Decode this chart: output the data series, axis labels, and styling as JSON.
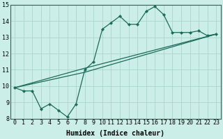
{
  "xlabel": "Humidex (Indice chaleur)",
  "background_color": "#cceee8",
  "grid_color": "#aad4cc",
  "line_color": "#1a6b5a",
  "xlim": [
    -0.5,
    23.5
  ],
  "ylim": [
    8,
    15
  ],
  "xticks": [
    0,
    1,
    2,
    3,
    4,
    5,
    6,
    7,
    8,
    9,
    10,
    11,
    12,
    13,
    14,
    15,
    16,
    17,
    18,
    19,
    20,
    21,
    22,
    23
  ],
  "yticks": [
    8,
    9,
    10,
    11,
    12,
    13,
    14,
    15
  ],
  "series1_x": [
    0,
    1,
    2,
    3,
    4,
    5,
    6,
    7,
    8,
    9,
    10,
    11,
    12,
    13,
    14,
    15,
    16,
    17,
    18,
    19,
    20,
    21,
    22,
    23
  ],
  "series1_y": [
    9.9,
    9.7,
    9.7,
    8.6,
    8.9,
    8.5,
    8.1,
    8.9,
    11.0,
    11.5,
    13.5,
    13.9,
    14.3,
    13.8,
    13.8,
    14.6,
    14.9,
    14.4,
    13.3,
    13.3,
    13.3,
    13.4,
    13.1,
    13.2
  ],
  "series2_x": [
    0,
    8,
    23
  ],
  "series2_y": [
    9.9,
    11.1,
    13.2
  ],
  "series3_x": [
    0,
    8,
    23
  ],
  "series3_y": [
    9.9,
    10.85,
    13.2
  ],
  "fontsize_ticks": 6,
  "fontsize_label": 7
}
